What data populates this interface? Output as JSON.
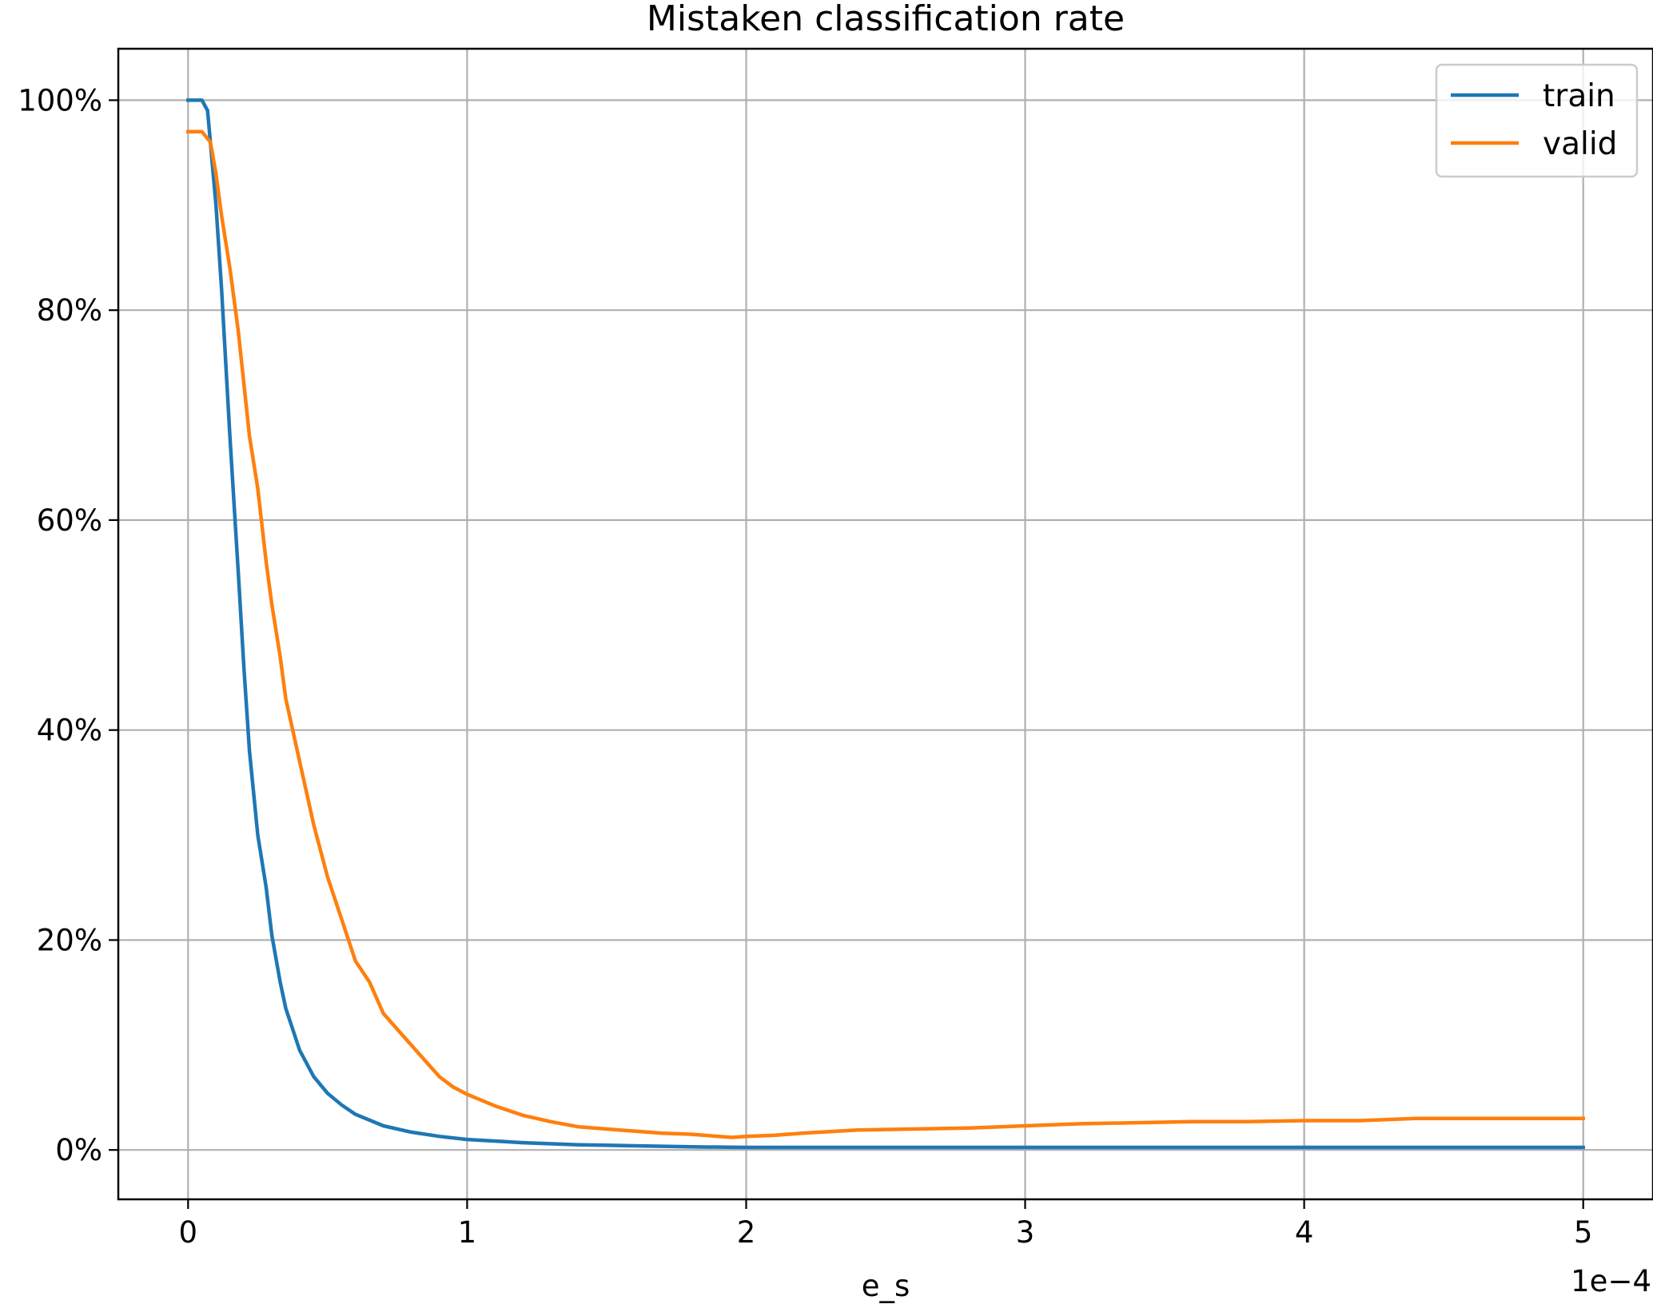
{
  "chart_data": {
    "type": "line",
    "title": "Mistaken classification rate",
    "xlabel": "e_s",
    "ylabel": "",
    "x_offset_label": "1e−4",
    "xlim": [
      -0.25,
      5.25
    ],
    "ylim": [
      -4.7,
      104.9
    ],
    "x_ticks": [
      0,
      1,
      2,
      3,
      4,
      5
    ],
    "x_tick_labels": [
      "0",
      "1",
      "2",
      "3",
      "4",
      "5"
    ],
    "y_ticks": [
      0,
      20,
      40,
      60,
      80,
      100
    ],
    "y_tick_labels": [
      "0%",
      "20%",
      "40%",
      "60%",
      "80%",
      "100%"
    ],
    "grid": true,
    "legend_position": "top-right",
    "colors": {
      "train": "#1f77b4",
      "valid": "#ff7f0e",
      "grid": "#b0b0b0"
    },
    "series": [
      {
        "name": "train",
        "x": [
          0,
          0.03,
          0.05,
          0.07,
          0.1,
          0.12,
          0.15,
          0.18,
          0.2,
          0.22,
          0.25,
          0.28,
          0.3,
          0.33,
          0.35,
          0.4,
          0.45,
          0.5,
          0.55,
          0.6,
          0.7,
          0.8,
          0.9,
          1.0,
          1.2,
          1.4,
          1.6,
          1.8,
          2.0,
          2.5,
          3.0,
          3.5,
          4.0,
          4.5,
          5.0
        ],
        "values": [
          100,
          100,
          100,
          99,
          90,
          82,
          68,
          55,
          46,
          38,
          30,
          25,
          20.5,
          16,
          13.5,
          9.5,
          7,
          5.4,
          4.3,
          3.4,
          2.3,
          1.7,
          1.3,
          1.0,
          0.7,
          0.5,
          0.4,
          0.3,
          0.25,
          0.25,
          0.25,
          0.25,
          0.25,
          0.25,
          0.25
        ]
      },
      {
        "name": "valid",
        "x": [
          0,
          0.05,
          0.08,
          0.1,
          0.12,
          0.15,
          0.18,
          0.2,
          0.22,
          0.25,
          0.28,
          0.3,
          0.33,
          0.35,
          0.4,
          0.45,
          0.5,
          0.55,
          0.6,
          0.65,
          0.7,
          0.75,
          0.8,
          0.85,
          0.9,
          0.95,
          1.0,
          1.1,
          1.2,
          1.3,
          1.4,
          1.5,
          1.6,
          1.7,
          1.8,
          1.9,
          1.95,
          2.0,
          2.1,
          2.2,
          2.4,
          2.6,
          2.8,
          3.0,
          3.2,
          3.4,
          3.6,
          3.8,
          4.0,
          4.2,
          4.4,
          4.6,
          4.8,
          5.0
        ],
        "values": [
          97,
          97,
          96,
          93,
          89,
          84,
          78,
          73,
          68,
          63,
          56,
          52,
          47,
          43,
          37,
          31,
          26,
          22,
          18,
          16,
          13,
          11.5,
          10,
          8.5,
          7,
          6,
          5.3,
          4.2,
          3.3,
          2.7,
          2.2,
          2,
          1.8,
          1.6,
          1.5,
          1.3,
          1.2,
          1.3,
          1.4,
          1.6,
          1.9,
          2,
          2.1,
          2.3,
          2.5,
          2.6,
          2.7,
          2.7,
          2.8,
          2.8,
          3.0,
          3.0,
          3.0,
          3.0
        ]
      }
    ]
  }
}
